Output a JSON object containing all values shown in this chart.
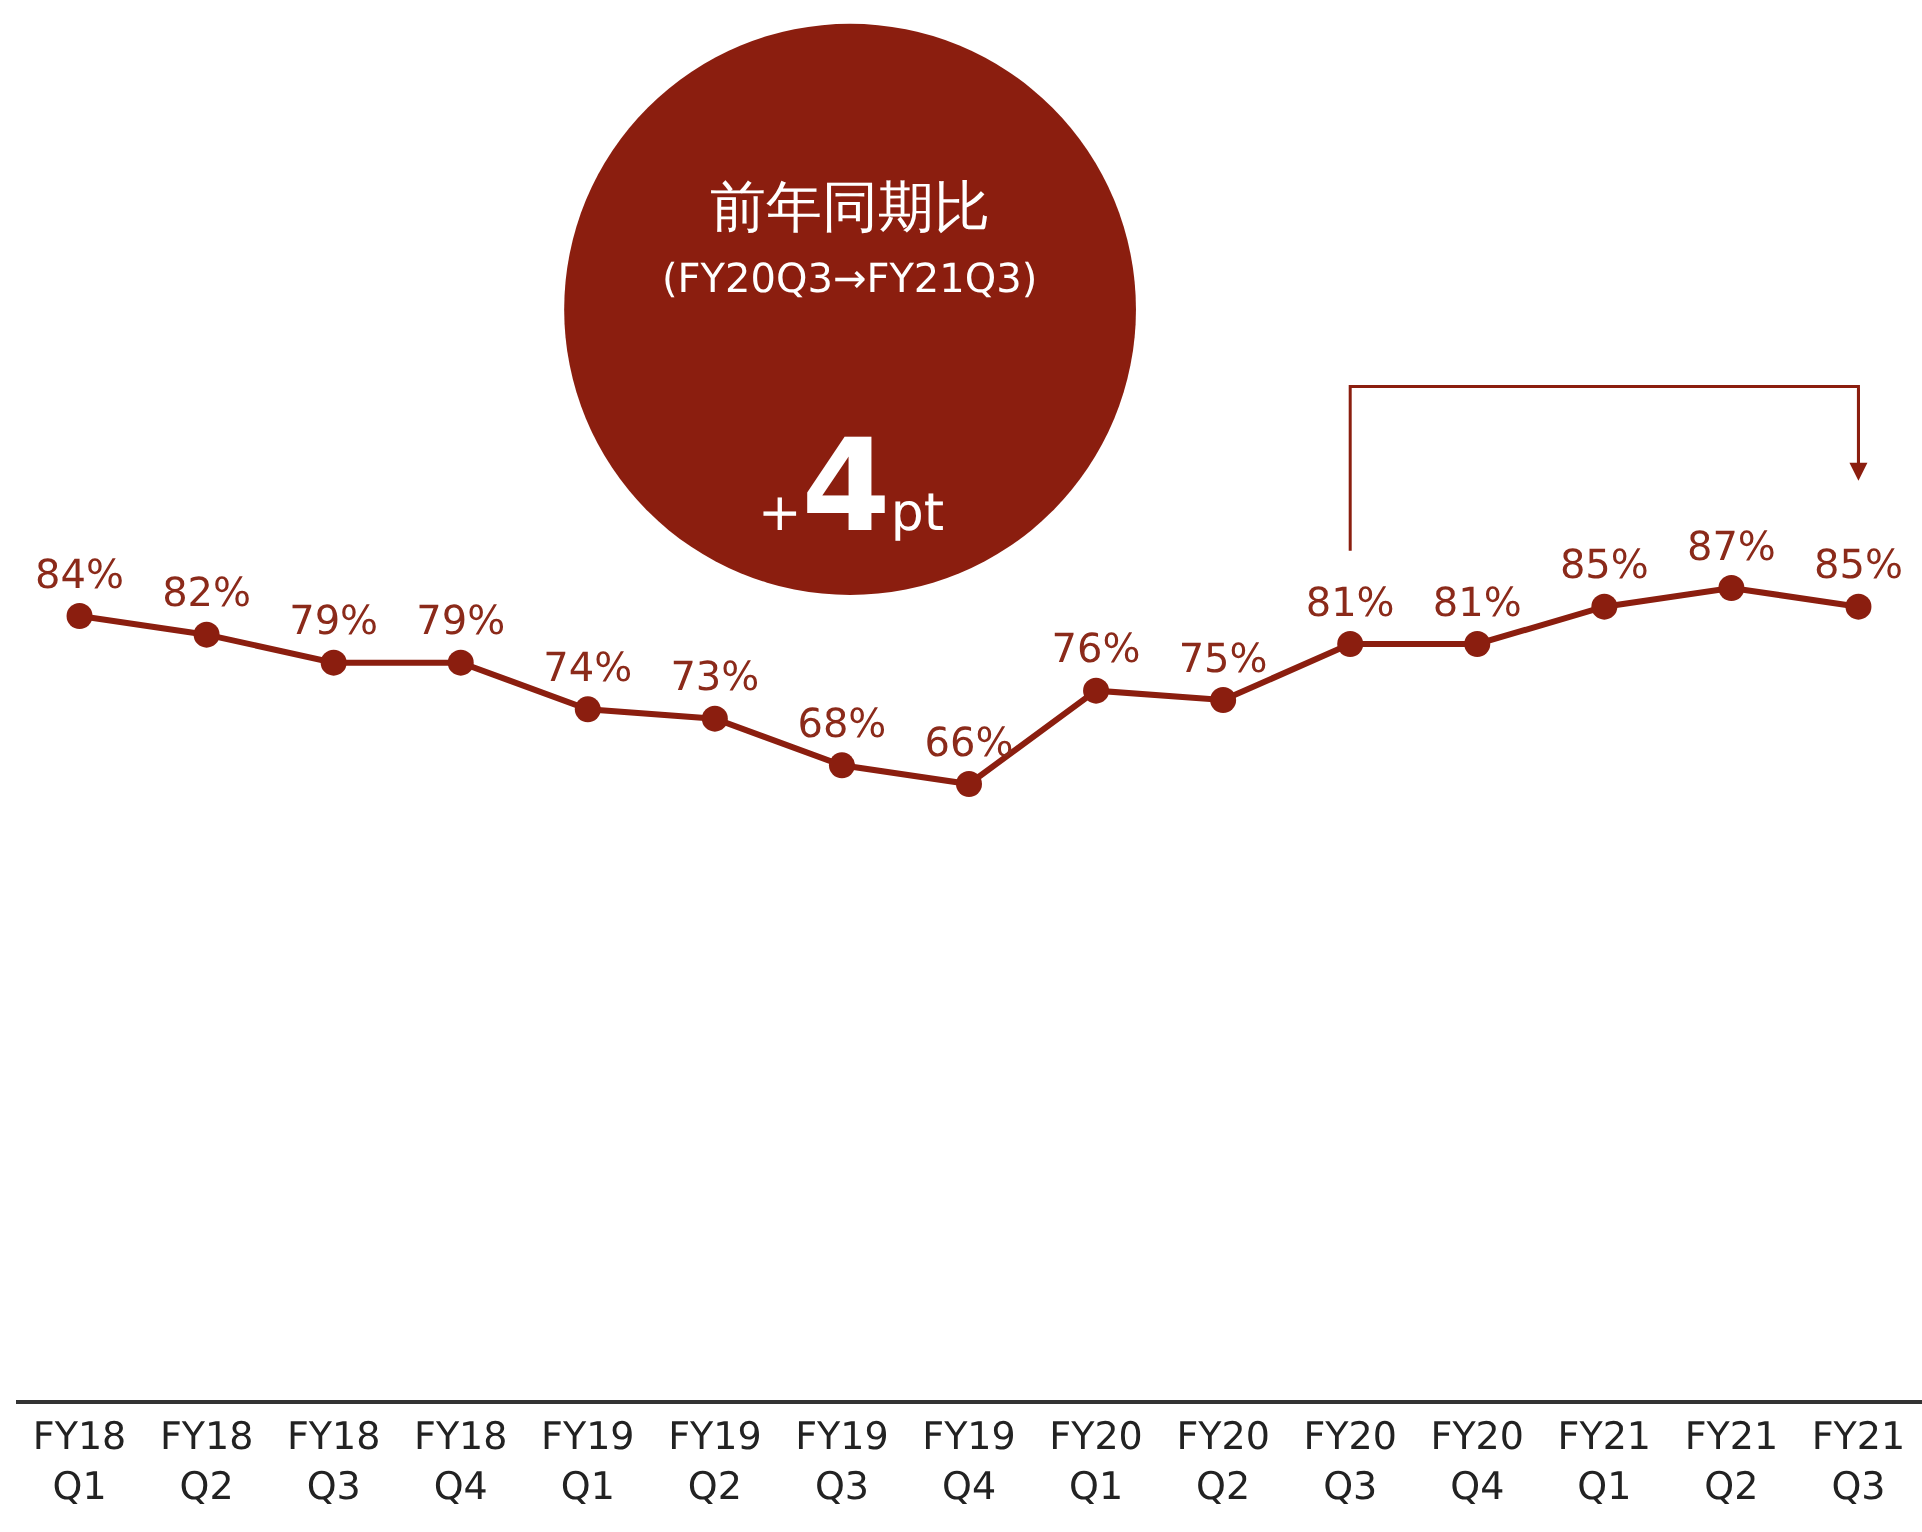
{
  "chart_data": {
    "type": "line",
    "categories": [
      "FY18\nQ1",
      "FY18\nQ2",
      "FY18\nQ3",
      "FY18\nQ4",
      "FY19\nQ1",
      "FY19\nQ2",
      "FY19\nQ3",
      "FY19\nQ4",
      "FY20\nQ1",
      "FY20\nQ2",
      "FY20\nQ3",
      "FY20\nQ4",
      "FY21\nQ1",
      "FY21\nQ2",
      "FY21\nQ3"
    ],
    "series": [
      {
        "color": "#8b1e0f",
        "values": [
          84,
          82,
          79,
          79,
          74,
          73,
          68,
          66,
          76,
          75,
          81,
          81,
          85,
          87,
          85
        ],
        "value_labels": [
          "84%",
          "82%",
          "79%",
          "79%",
          "74%",
          "73%",
          "68%",
          "66%",
          "76%",
          "75%",
          "81%",
          "81%",
          "85%",
          "87%",
          "85%"
        ]
      }
    ],
    "ylim": [
      0,
      150
    ],
    "marker": "circle",
    "line_style": "solid",
    "grid": false,
    "legend": false,
    "tick_labels": "x",
    "annotations": [
      "前年同期比",
      "(FY20Q3→FY21Q3)",
      "+4pt"
    ]
  }
}
